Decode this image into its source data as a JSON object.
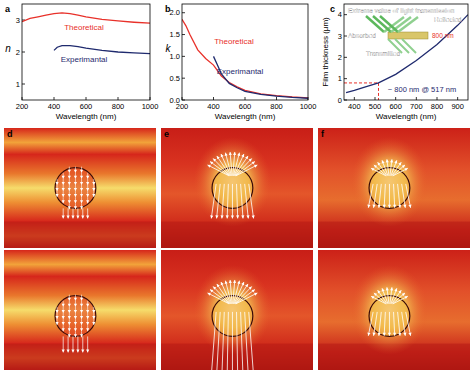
{
  "chart_data": [
    {
      "type": "line",
      "title": "a",
      "x_label": "Wavelength (nm)",
      "y_label": "n",
      "xlim": [
        200,
        1000
      ],
      "xticks": [
        200,
        400,
        600,
        800,
        1000
      ],
      "ylim": [
        0.5,
        3.5
      ],
      "yticks": [
        1,
        2,
        3
      ],
      "series": [
        {
          "name": "Theoretical",
          "color": "#e8312a",
          "x": [
            200,
            250,
            300,
            350,
            400,
            450,
            500,
            550,
            600,
            700,
            800,
            900,
            1000
          ],
          "values": [
            2.95,
            3.05,
            3.1,
            3.15,
            3.2,
            3.22,
            3.2,
            3.15,
            3.1,
            3.02,
            2.97,
            2.93,
            2.9
          ]
        },
        {
          "name": "Experimantal",
          "color": "#1f2a6e",
          "x": [
            400,
            420,
            450,
            500,
            550,
            600,
            700,
            800,
            900,
            1000
          ],
          "values": [
            2.05,
            2.15,
            2.2,
            2.2,
            2.17,
            2.12,
            2.05,
            2.0,
            1.97,
            1.95
          ]
        }
      ]
    },
    {
      "type": "line",
      "title": "b",
      "x_label": "Wavelength (nm)",
      "y_label": "k",
      "xlim": [
        200,
        1000
      ],
      "xticks": [
        200,
        400,
        600,
        800,
        1000
      ],
      "ylim": [
        0,
        2.2
      ],
      "yticks": [
        {
          "value": 0,
          "label": "0.0"
        },
        0.5,
        {
          "value": 1,
          "label": "1.0"
        },
        1.5,
        {
          "value": 2,
          "label": "2.0"
        }
      ],
      "series": [
        {
          "name": "Theoretical",
          "color": "#e8312a",
          "x": [
            200,
            225,
            250,
            300,
            350,
            400,
            450,
            500,
            550,
            600,
            700,
            800,
            900,
            1000
          ],
          "values": [
            1.85,
            1.7,
            1.5,
            1.15,
            0.95,
            0.8,
            0.55,
            0.4,
            0.3,
            0.22,
            0.14,
            0.1,
            0.07,
            0.05
          ]
        },
        {
          "name": "Experimantal",
          "color": "#1f2a6e",
          "x": [
            400,
            425,
            450,
            500,
            550,
            600,
            700,
            800,
            900,
            1000
          ],
          "values": [
            1.0,
            0.8,
            0.6,
            0.38,
            0.28,
            0.2,
            0.13,
            0.09,
            0.06,
            0.04
          ]
        }
      ]
    },
    {
      "type": "line",
      "title": "c",
      "x_label": "Wavelength (nm)",
      "y_label": "Film thickness (μm)",
      "xlim": [
        350,
        950
      ],
      "xticks": [
        400,
        500,
        600,
        700,
        800,
        900
      ],
      "ylim": [
        0,
        4.5
      ],
      "yticks": [
        0,
        1,
        2,
        3,
        4
      ],
      "series": [
        {
          "color": "#1f2a6e",
          "x": [
            360,
            400,
            450,
            517,
            600,
            700,
            800,
            900,
            950
          ],
          "values": [
            0.35,
            0.45,
            0.6,
            0.8,
            1.2,
            1.85,
            2.6,
            3.5,
            4.0
          ]
        }
      ],
      "reference": {
        "x": 517,
        "y": 0.8
      },
      "annotations": [
        "~ 800 nm @ 517 nm"
      ],
      "inset": {
        "title": "Extreme value of light transmission",
        "labels": [
          "Reflected",
          "Absorbed",
          "800 nm",
          "Transmitted"
        ]
      }
    }
  ],
  "panels": [
    {
      "label": "d"
    },
    {
      "label": "e"
    },
    {
      "label": "f"
    }
  ]
}
